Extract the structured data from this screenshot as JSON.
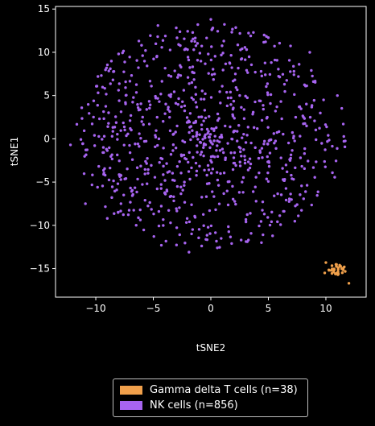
{
  "chart_data": {
    "type": "scatter",
    "title": "",
    "xlabel": "tSNE2",
    "ylabel": "tSNE1",
    "xlim": [
      -13.5,
      13.5
    ],
    "ylim": [
      -18.3,
      15.3
    ],
    "xticks": [
      -10,
      -5,
      0,
      5,
      10
    ],
    "yticks": [
      -15,
      -10,
      -5,
      0,
      5,
      10,
      15
    ],
    "grid": false,
    "legend_position": "bottom-center",
    "series": [
      {
        "name": "Gamma delta T cells (n=38)",
        "color": "#f0a04b",
        "count": 38,
        "cluster": {
          "center": [
            10.9,
            -15.2
          ],
          "radius": 0.8
        },
        "points": [
          [
            12.0,
            -16.7
          ],
          [
            10.0,
            -14.3
          ],
          [
            9.9,
            -15.5
          ],
          [
            11.6,
            -14.8
          ]
        ]
      },
      {
        "name": "NK cells (n=856)",
        "color": "#a764f0",
        "count": 856,
        "cluster": {
          "center": [
            0.0,
            0.3
          ],
          "rx": 11.8,
          "ry": 13.0
        },
        "points": [
          [
            0.0,
            13.8
          ],
          [
            -4.6,
            13.1
          ],
          [
            -12.2,
            -0.7
          ],
          [
            -9.0,
            -9.2
          ],
          [
            -4.3,
            -12.3
          ],
          [
            -1.9,
            -13.1
          ],
          [
            8.6,
            10.0
          ],
          [
            9.8,
            4.5
          ],
          [
            10.2,
            0.4
          ],
          [
            -10.9,
            -7.5
          ],
          [
            11.0,
            5.0
          ],
          [
            4.4,
            -12.0
          ]
        ]
      }
    ]
  }
}
